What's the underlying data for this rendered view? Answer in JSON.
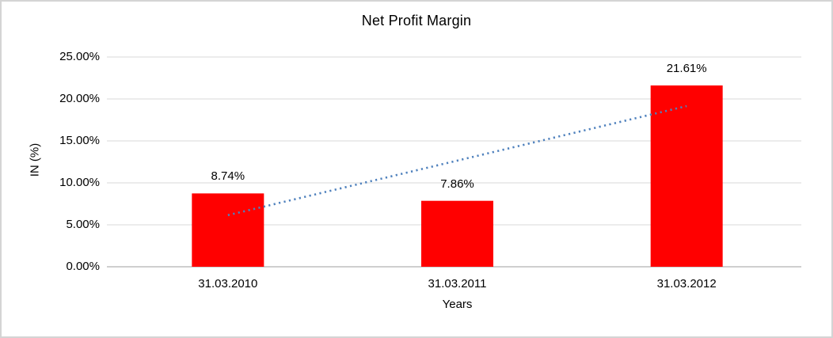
{
  "chart_data": {
    "type": "bar",
    "title": "Net Profit Margin",
    "xlabel": "Years",
    "ylabel": "IN (%)",
    "categories": [
      "31.03.2010",
      "31.03.2011",
      "31.03.2012"
    ],
    "values": [
      8.74,
      7.86,
      21.61
    ],
    "data_labels": [
      "8.74%",
      "7.86%",
      "21.61%"
    ],
    "ylim": [
      0,
      25
    ],
    "ytick_step": 5,
    "ytick_labels": [
      "0.00%",
      "5.00%",
      "10.00%",
      "15.00%",
      "20.00%",
      "25.00%"
    ],
    "grid": true,
    "legend_position": "none",
    "bar_color": "#FF0000",
    "trendline": {
      "type": "linear",
      "style": "dotted",
      "color": "#4F81BD",
      "start_value_pct": 6.15,
      "end_value_pct": 19.15
    }
  },
  "colors": {
    "background": "#FFFFFF",
    "border": "#D4D4D4",
    "gridline": "#D9D9D9",
    "axis_line": "#BFBFBF",
    "text": "#000000"
  }
}
